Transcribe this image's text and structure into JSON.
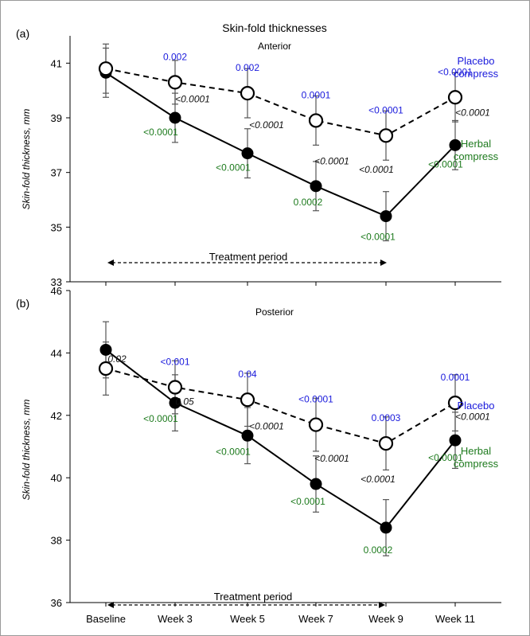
{
  "figure": {
    "title": "Skin-fold thicknesses",
    "x_categories": [
      "Baseline",
      "Week 3",
      "Week 5",
      "Week 7",
      "Week 9",
      "Week 11"
    ]
  },
  "chart_data": [
    {
      "panel": "(a)",
      "type": "line",
      "subtitle": "Anterior",
      "ylabel": "Skin-fold thickness, mm",
      "ylim": [
        33,
        42
      ],
      "yticks": [
        33,
        35,
        37,
        39,
        41
      ],
      "categories": [
        "Baseline",
        "Week 3",
        "Week 5",
        "Week 7",
        "Week 9",
        "Week 11"
      ],
      "series": [
        {
          "name": "Placebo compress",
          "legend": [
            "Placebo",
            "compress"
          ],
          "color": "#1a1adc",
          "marker": "open-circle",
          "line": "dashed",
          "values": [
            40.8,
            40.3,
            39.9,
            38.9,
            38.35,
            39.75
          ],
          "err": [
            0.9,
            0.8,
            0.9,
            0.9,
            0.9,
            0.9
          ],
          "p_values": [
            "",
            "0.002",
            "0.002",
            "0.0001",
            "<0.0001",
            "<0.0001"
          ]
        },
        {
          "name": "Herbal compress",
          "legend": [
            "Herbal",
            "compress"
          ],
          "color": "#1d7a1d",
          "marker": "filled-circle",
          "line": "solid",
          "values": [
            40.65,
            39.0,
            37.7,
            36.5,
            35.4,
            38.0
          ],
          "err": [
            0.9,
            0.9,
            0.9,
            0.9,
            0.9,
            0.9
          ],
          "p_values": [
            "",
            "<0.0001",
            "<0.0001",
            "0.0002",
            "<0.0001",
            "<0.0001"
          ]
        }
      ],
      "between_group_p": [
        "",
        "<0.0001",
        "<0.0001",
        "<0.0001",
        "<0.0001",
        "<0.0001"
      ],
      "annotation": "Treatment period"
    },
    {
      "panel": "(b)",
      "type": "line",
      "subtitle": "Posterior",
      "ylabel": "Skin-fold thickness, mm",
      "ylim": [
        36,
        46
      ],
      "yticks": [
        36,
        38,
        40,
        42,
        44,
        46
      ],
      "categories": [
        "Baseline",
        "Week 3",
        "Week 5",
        "Week 7",
        "Week 9",
        "Week 11"
      ],
      "series": [
        {
          "name": "Placebo",
          "legend": [
            "Placebo"
          ],
          "color": "#1a1adc",
          "marker": "open-circle",
          "line": "dashed",
          "values": [
            43.5,
            42.9,
            42.5,
            41.7,
            41.1,
            42.4
          ],
          "err": [
            0.85,
            0.85,
            0.85,
            0.85,
            0.85,
            0.9
          ],
          "p_values": [
            "",
            "<0.001",
            "0.04",
            "<0.0001",
            "0.0003",
            "0.0001"
          ]
        },
        {
          "name": "Herbal compress",
          "legend": [
            "Herbal",
            "compress"
          ],
          "color": "#1d7a1d",
          "marker": "filled-circle",
          "line": "solid",
          "values": [
            44.1,
            42.4,
            41.35,
            39.8,
            38.4,
            41.2
          ],
          "err": [
            0.9,
            0.9,
            0.9,
            0.9,
            0.9,
            0.9
          ],
          "p_values": [
            "",
            "<0.0001",
            "<0.0001",
            "<0.0001",
            "0.0002",
            "<0.0001"
          ]
        }
      ],
      "between_group_p": [
        "0.02",
        "0.05",
        "<0.0001",
        "<0.0001",
        "<0.0001",
        "<0.0001"
      ],
      "annotation": "Treatment period"
    }
  ]
}
